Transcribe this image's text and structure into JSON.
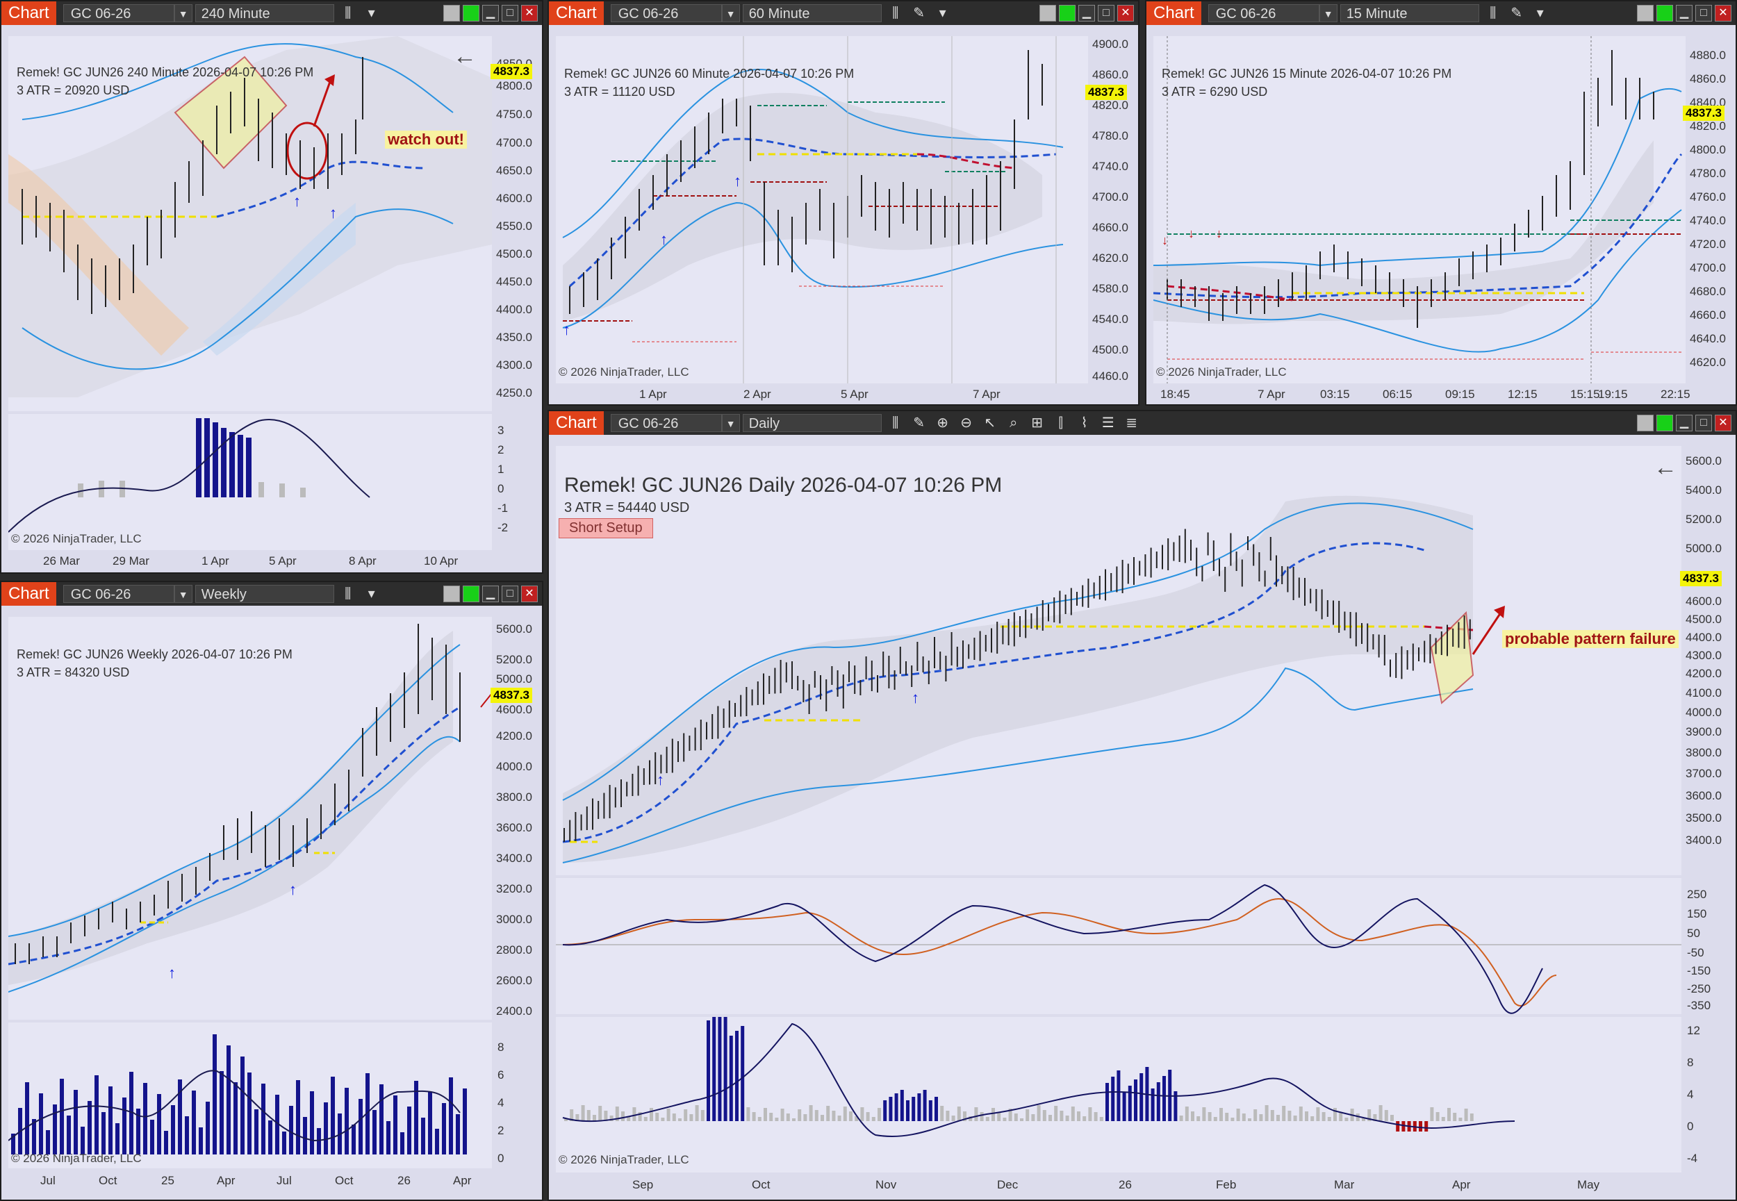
{
  "chart_tab_label": "Chart",
  "instrument": "GC 06-26",
  "price_marker": "4837.3",
  "copyright": "© 2026 NinjaTrader, LLC",
  "back_arrow": "←",
  "windows": {
    "w240": {
      "interval": "240 Minute",
      "header": "Remek!  GC JUN26  240 Minute  2026-04-07 10:26 PM",
      "atr": "3 ATR = 20920 USD",
      "note": "watch out!",
      "price_axis": [
        "4850.0",
        "4800.0",
        "4750.0",
        "4700.0",
        "4650.0",
        "4600.0",
        "4550.0",
        "4500.0",
        "4450.0",
        "4400.0",
        "4350.0",
        "4300.0",
        "4250.0"
      ],
      "ind_axis": [
        "3",
        "2",
        "1",
        "0",
        "-1",
        "-2"
      ],
      "time_axis": [
        "26 Mar",
        "29 Mar",
        "1 Apr",
        "5 Apr",
        "8 Apr",
        "10 Apr"
      ]
    },
    "w60": {
      "interval": "60 Minute",
      "header": "Remek!  GC JUN26  60 Minute  2026-04-07 10:26 PM",
      "atr": "3 ATR = 11120 USD",
      "price_axis": [
        "4900.0",
        "4860.0",
        "4820.0",
        "4780.0",
        "4740.0",
        "4700.0",
        "4660.0",
        "4620.0",
        "4580.0",
        "4540.0",
        "4500.0",
        "4460.0"
      ],
      "time_axis": [
        "1 Apr",
        "2 Apr",
        "5 Apr",
        "7 Apr"
      ]
    },
    "w15": {
      "interval": "15 Minute",
      "header": "Remek!  GC JUN26  15 Minute  2026-04-07 10:26 PM",
      "atr": "3 ATR = 6290 USD",
      "price_axis": [
        "4880.0",
        "4860.0",
        "4840.0",
        "4820.0",
        "4800.0",
        "4780.0",
        "4760.0",
        "4740.0",
        "4720.0",
        "4700.0",
        "4680.0",
        "4660.0",
        "4640.0",
        "4620.0"
      ],
      "time_axis": [
        "18:45",
        "7 Apr",
        "03:15",
        "06:15",
        "09:15",
        "12:15",
        "15:15",
        "19:15",
        "22:15"
      ]
    },
    "weekly": {
      "interval": "Weekly",
      "header": "Remek!  GC JUN26  Weekly  2026-04-07 10:26 PM",
      "atr": "3 ATR = 84320 USD",
      "price_axis": [
        "5600.0",
        "5200.0",
        "5000.0",
        "4600.0",
        "4200.0",
        "4000.0",
        "3800.0",
        "3600.0",
        "3400.0",
        "3200.0",
        "3000.0",
        "2800.0",
        "2600.0",
        "2400.0"
      ],
      "ind_axis": [
        "8",
        "6",
        "4",
        "2",
        "0"
      ],
      "time_axis": [
        "Jul",
        "Oct",
        "25",
        "Apr",
        "Jul",
        "Oct",
        "26",
        "Apr"
      ]
    },
    "daily": {
      "interval": "Daily",
      "header": "Remek!  GC JUN26  Daily  2026-04-07 10:26 PM",
      "atr": "3 ATR = 54440 USD",
      "button": "Short Setup",
      "note": "probable pattern failure",
      "price_axis": [
        "5600.0",
        "5400.0",
        "5200.0",
        "5000.0",
        "4600.0",
        "4500.0",
        "4400.0",
        "4300.0",
        "4200.0",
        "4100.0",
        "4000.0",
        "3900.0",
        "3800.0",
        "3700.0",
        "3600.0",
        "3500.0",
        "3400.0"
      ],
      "osc_axis": [
        "250",
        "150",
        "50",
        "-50",
        "-150",
        "-250",
        "-350"
      ],
      "ind_axis": [
        "12",
        "8",
        "4",
        "0",
        "-4"
      ],
      "time_axis": [
        "Sep",
        "Oct",
        "Nov",
        "Dec",
        "26",
        "Feb",
        "Mar",
        "Apr",
        "May"
      ]
    }
  }
}
